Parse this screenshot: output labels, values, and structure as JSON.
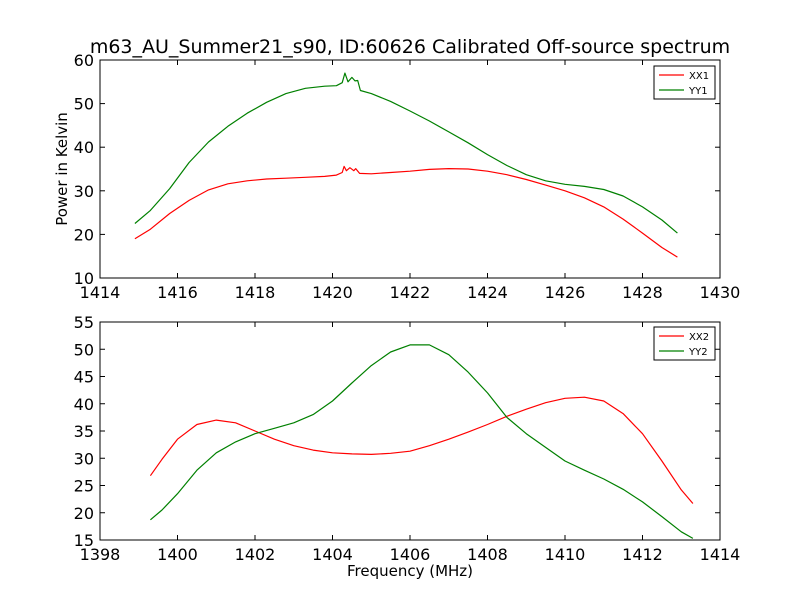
{
  "chart_data": [
    {
      "type": "line",
      "title": "m63_AU_Summer21_s90, ID:60626 Calibrated Off-source spectrum",
      "xlabel": "",
      "ylabel": "Power in Kelvin",
      "xlim": [
        1414,
        1430
      ],
      "ylim": [
        10,
        60
      ],
      "xticks": [
        "1414",
        "1416",
        "1418",
        "1420",
        "1422",
        "1424",
        "1426",
        "1428",
        "1430"
      ],
      "yticks": [
        "10",
        "20",
        "30",
        "40",
        "50",
        "60"
      ],
      "grid": false,
      "legend_position": "top-right",
      "series": [
        {
          "name": "XX1",
          "color": "#ff0000",
          "points": [
            [
              1414.9,
              19.0
            ],
            [
              1415.3,
              21.2
            ],
            [
              1415.8,
              24.8
            ],
            [
              1416.3,
              27.8
            ],
            [
              1416.8,
              30.2
            ],
            [
              1417.3,
              31.6
            ],
            [
              1417.8,
              32.3
            ],
            [
              1418.3,
              32.7
            ],
            [
              1418.8,
              32.9
            ],
            [
              1419.3,
              33.1
            ],
            [
              1419.8,
              33.3
            ],
            [
              1420.1,
              33.6
            ],
            [
              1420.25,
              34.2
            ],
            [
              1420.3,
              35.6
            ],
            [
              1420.36,
              34.6
            ],
            [
              1420.45,
              35.3
            ],
            [
              1420.55,
              34.6
            ],
            [
              1420.6,
              35.1
            ],
            [
              1420.7,
              34.0
            ],
            [
              1421.0,
              33.9
            ],
            [
              1421.5,
              34.2
            ],
            [
              1422.0,
              34.5
            ],
            [
              1422.5,
              34.9
            ],
            [
              1423.0,
              35.1
            ],
            [
              1423.5,
              35.0
            ],
            [
              1424.0,
              34.5
            ],
            [
              1424.5,
              33.7
            ],
            [
              1425.0,
              32.6
            ],
            [
              1425.5,
              31.3
            ],
            [
              1426.0,
              30.0
            ],
            [
              1426.5,
              28.4
            ],
            [
              1427.0,
              26.3
            ],
            [
              1427.5,
              23.5
            ],
            [
              1428.0,
              20.3
            ],
            [
              1428.5,
              17.0
            ],
            [
              1428.9,
              14.8
            ]
          ]
        },
        {
          "name": "YY1",
          "color": "#008000",
          "points": [
            [
              1414.9,
              22.5
            ],
            [
              1415.3,
              25.5
            ],
            [
              1415.8,
              30.5
            ],
            [
              1416.3,
              36.5
            ],
            [
              1416.8,
              41.2
            ],
            [
              1417.3,
              44.8
            ],
            [
              1417.8,
              47.8
            ],
            [
              1418.3,
              50.3
            ],
            [
              1418.8,
              52.3
            ],
            [
              1419.3,
              53.5
            ],
            [
              1419.8,
              54.0
            ],
            [
              1420.1,
              54.1
            ],
            [
              1420.25,
              54.8
            ],
            [
              1420.32,
              57.0
            ],
            [
              1420.4,
              55.0
            ],
            [
              1420.5,
              56.0
            ],
            [
              1420.58,
              55.2
            ],
            [
              1420.65,
              55.3
            ],
            [
              1420.72,
              53.0
            ],
            [
              1421.0,
              52.3
            ],
            [
              1421.5,
              50.5
            ],
            [
              1422.0,
              48.3
            ],
            [
              1422.5,
              46.0
            ],
            [
              1423.0,
              43.5
            ],
            [
              1423.5,
              41.0
            ],
            [
              1424.0,
              38.3
            ],
            [
              1424.5,
              35.8
            ],
            [
              1425.0,
              33.7
            ],
            [
              1425.5,
              32.3
            ],
            [
              1426.0,
              31.5
            ],
            [
              1426.5,
              31.0
            ],
            [
              1427.0,
              30.3
            ],
            [
              1427.5,
              28.8
            ],
            [
              1428.0,
              26.3
            ],
            [
              1428.5,
              23.3
            ],
            [
              1428.9,
              20.3
            ]
          ]
        }
      ]
    },
    {
      "type": "line",
      "title": "",
      "xlabel": "Frequency (MHz)",
      "ylabel": "",
      "xlim": [
        1398,
        1414
      ],
      "ylim": [
        15,
        55
      ],
      "xticks": [
        "1398",
        "1400",
        "1402",
        "1404",
        "1406",
        "1408",
        "1410",
        "1412",
        "1414"
      ],
      "yticks": [
        "15",
        "20",
        "25",
        "30",
        "35",
        "40",
        "45",
        "50",
        "55"
      ],
      "grid": false,
      "legend_position": "top-right",
      "series": [
        {
          "name": "XX2",
          "color": "#ff0000",
          "points": [
            [
              1399.3,
              26.8
            ],
            [
              1399.6,
              29.8
            ],
            [
              1400.0,
              33.5
            ],
            [
              1400.5,
              36.2
            ],
            [
              1401.0,
              37.0
            ],
            [
              1401.5,
              36.5
            ],
            [
              1402.0,
              35.0
            ],
            [
              1402.5,
              33.5
            ],
            [
              1403.0,
              32.3
            ],
            [
              1403.5,
              31.5
            ],
            [
              1404.0,
              31.0
            ],
            [
              1404.5,
              30.8
            ],
            [
              1405.0,
              30.7
            ],
            [
              1405.5,
              30.9
            ],
            [
              1406.0,
              31.3
            ],
            [
              1406.5,
              32.3
            ],
            [
              1407.0,
              33.5
            ],
            [
              1407.5,
              34.8
            ],
            [
              1408.0,
              36.2
            ],
            [
              1408.5,
              37.7
            ],
            [
              1409.0,
              39.0
            ],
            [
              1409.5,
              40.2
            ],
            [
              1410.0,
              41.0
            ],
            [
              1410.5,
              41.2
            ],
            [
              1411.0,
              40.5
            ],
            [
              1411.5,
              38.2
            ],
            [
              1412.0,
              34.5
            ],
            [
              1412.5,
              29.5
            ],
            [
              1413.0,
              24.2
            ],
            [
              1413.3,
              21.7
            ]
          ]
        },
        {
          "name": "YY2",
          "color": "#008000",
          "points": [
            [
              1399.3,
              18.7
            ],
            [
              1399.6,
              20.5
            ],
            [
              1400.0,
              23.5
            ],
            [
              1400.5,
              27.8
            ],
            [
              1401.0,
              31.0
            ],
            [
              1401.5,
              33.0
            ],
            [
              1402.0,
              34.5
            ],
            [
              1402.5,
              35.5
            ],
            [
              1403.0,
              36.5
            ],
            [
              1403.5,
              38.0
            ],
            [
              1404.0,
              40.5
            ],
            [
              1404.5,
              43.8
            ],
            [
              1405.0,
              47.0
            ],
            [
              1405.5,
              49.5
            ],
            [
              1406.0,
              50.8
            ],
            [
              1406.5,
              50.8
            ],
            [
              1407.0,
              49.0
            ],
            [
              1407.5,
              45.8
            ],
            [
              1408.0,
              42.0
            ],
            [
              1408.5,
              37.5
            ],
            [
              1409.0,
              34.5
            ],
            [
              1409.5,
              32.0
            ],
            [
              1410.0,
              29.5
            ],
            [
              1410.5,
              27.8
            ],
            [
              1411.0,
              26.2
            ],
            [
              1411.5,
              24.3
            ],
            [
              1412.0,
              22.0
            ],
            [
              1412.5,
              19.3
            ],
            [
              1413.0,
              16.5
            ],
            [
              1413.3,
              15.3
            ]
          ]
        }
      ]
    }
  ]
}
